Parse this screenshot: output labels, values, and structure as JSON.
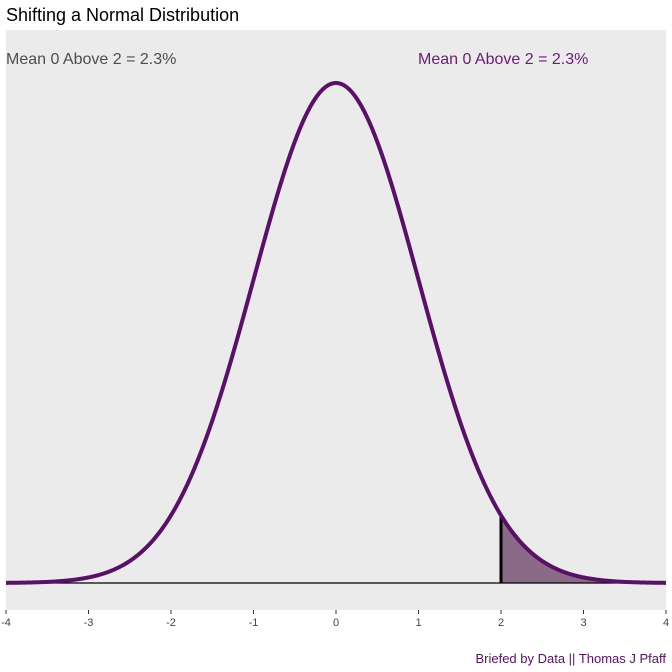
{
  "title": "Shifting a Normal Distribution",
  "caption": "Briefed by Data || Thomas J Pfaff",
  "colors": {
    "panel": "#ebebeb",
    "curve": "#5a0f68",
    "shade": "#8a6a86",
    "annotation_left": "#4d4d4d",
    "annotation_right": "#6b1a78"
  },
  "chart_data": {
    "type": "area",
    "distribution": "normal",
    "mean": 0,
    "sd": 1,
    "threshold": 2,
    "xlim": [
      -4,
      4
    ],
    "ylim": [
      0,
      0.4
    ],
    "x_ticks": [
      -4,
      -3,
      -2,
      -1,
      0,
      1,
      2,
      3,
      4
    ],
    "grid": false,
    "annotations": [
      {
        "text": "Mean 0 Above 2 = 2.3%",
        "position": "top-left"
      },
      {
        "text": "Mean 0 Above 2 = 2.3%",
        "position": "top-right"
      }
    ]
  }
}
